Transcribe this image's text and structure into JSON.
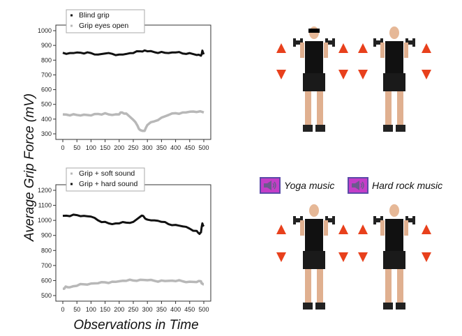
{
  "y_axis_label": "Average Grip Force (mV)",
  "x_axis_label": "Observations in Time",
  "chart_data": [
    {
      "type": "line",
      "xlim": [
        0,
        500
      ],
      "ylim": [
        300,
        1000
      ],
      "x_ticks": [
        0,
        50,
        100,
        150,
        200,
        250,
        300,
        350,
        400,
        450,
        500
      ],
      "y_ticks": [
        300,
        400,
        500,
        600,
        700,
        800,
        900,
        1000
      ],
      "legend_position": "top-left",
      "series": [
        {
          "name": "Blind grip",
          "color": "#111111",
          "x": [
            0,
            25,
            50,
            75,
            100,
            125,
            150,
            175,
            200,
            225,
            250,
            275,
            290,
            300,
            325,
            350,
            375,
            400,
            425,
            450,
            475,
            490,
            495,
            500
          ],
          "y": [
            850,
            848,
            852,
            845,
            848,
            838,
            845,
            843,
            838,
            842,
            848,
            860,
            866,
            860,
            854,
            856,
            848,
            852,
            845,
            848,
            835,
            830,
            865,
            840
          ]
        },
        {
          "name": "Grip eyes open",
          "color": "#b8b8b8",
          "x": [
            0,
            25,
            50,
            75,
            100,
            125,
            150,
            175,
            200,
            210,
            225,
            250,
            265,
            275,
            290,
            300,
            325,
            350,
            375,
            400,
            425,
            450,
            475,
            500
          ],
          "y": [
            432,
            425,
            428,
            430,
            425,
            435,
            440,
            428,
            432,
            445,
            438,
            395,
            355,
            325,
            320,
            360,
            385,
            410,
            428,
            440,
            445,
            450,
            448,
            445
          ]
        }
      ]
    },
    {
      "type": "line",
      "xlim": [
        0,
        500
      ],
      "ylim": [
        500,
        1200
      ],
      "x_ticks": [
        0,
        50,
        100,
        150,
        200,
        250,
        300,
        350,
        400,
        450,
        500
      ],
      "y_ticks": [
        500,
        600,
        700,
        800,
        900,
        1000,
        1100,
        1200
      ],
      "legend_position": "top-left",
      "series": [
        {
          "name": "Grip + soft sound",
          "color": "#b8b8b8",
          "x": [
            0,
            10,
            25,
            50,
            75,
            100,
            125,
            150,
            175,
            200,
            225,
            250,
            275,
            300,
            325,
            350,
            375,
            400,
            425,
            450,
            475,
            490,
            495,
            500
          ],
          "y": [
            545,
            560,
            555,
            565,
            575,
            580,
            582,
            588,
            592,
            595,
            598,
            600,
            605,
            602,
            598,
            600,
            598,
            596,
            595,
            592,
            590,
            595,
            580,
            575
          ]
        },
        {
          "name": "Grip + hard sound",
          "color": "#111111",
          "x": [
            0,
            25,
            50,
            75,
            100,
            125,
            150,
            175,
            200,
            225,
            250,
            275,
            285,
            300,
            325,
            350,
            375,
            400,
            425,
            450,
            475,
            485,
            490,
            495,
            500
          ],
          "y": [
            1030,
            1028,
            1035,
            1030,
            1025,
            1000,
            990,
            975,
            980,
            985,
            990,
            1025,
            1030,
            1005,
            1000,
            990,
            975,
            970,
            960,
            945,
            930,
            910,
            920,
            980,
            960
          ]
        }
      ]
    }
  ],
  "conditions": {
    "yoga_label": "Yoga music",
    "rock_label": "Hard rock music",
    "speaker_icon": "speaker-icon",
    "arrow_color": "#e8401c",
    "tag_color": "#c43ec8"
  }
}
